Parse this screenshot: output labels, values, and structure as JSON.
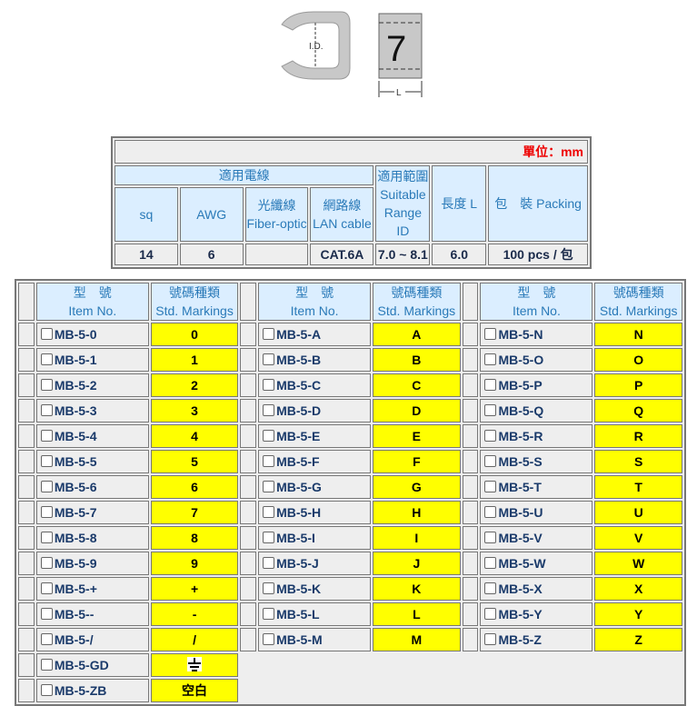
{
  "figure": {
    "id_label": "I.D.",
    "digit": "7",
    "length_label": "L"
  },
  "spec": {
    "unit": "單位：mm",
    "headers": {
      "wire": "適用電線",
      "sq": "sq",
      "awg": "AWG",
      "fiber": "光纖線 Fiber-optic",
      "lan": "網路線 LAN cable",
      "range": "適用範圍 Suitable Range ID",
      "length": "長度 L",
      "packing": "包　裝 Packing"
    },
    "values": {
      "sq": "14",
      "awg": "6",
      "fiber": "",
      "lan": "CAT.6A",
      "range": "7.0 ~ 8.1",
      "length": "6.0",
      "packing": "100 pcs / 包"
    }
  },
  "items": {
    "header": {
      "item_zh": "型　號",
      "item_en": "Item No.",
      "mark_zh": "號碼種類",
      "mark_en": "Std. Markings"
    },
    "groups": [
      [
        [
          "MB-5-0",
          "0"
        ],
        [
          "MB-5-1",
          "1"
        ],
        [
          "MB-5-2",
          "2"
        ],
        [
          "MB-5-3",
          "3"
        ],
        [
          "MB-5-4",
          "4"
        ],
        [
          "MB-5-5",
          "5"
        ],
        [
          "MB-5-6",
          "6"
        ],
        [
          "MB-5-7",
          "7"
        ],
        [
          "MB-5-8",
          "8"
        ],
        [
          "MB-5-9",
          "9"
        ],
        [
          "MB-5-+",
          "+"
        ],
        [
          "MB-5--",
          "-"
        ],
        [
          "MB-5-/",
          "/"
        ],
        [
          "MB-5-GD",
          "⏚"
        ],
        [
          "MB-5-ZB",
          "空白"
        ]
      ],
      [
        [
          "MB-5-A",
          "A"
        ],
        [
          "MB-5-B",
          "B"
        ],
        [
          "MB-5-C",
          "C"
        ],
        [
          "MB-5-D",
          "D"
        ],
        [
          "MB-5-E",
          "E"
        ],
        [
          "MB-5-F",
          "F"
        ],
        [
          "MB-5-G",
          "G"
        ],
        [
          "MB-5-H",
          "H"
        ],
        [
          "MB-5-I",
          "I"
        ],
        [
          "MB-5-J",
          "J"
        ],
        [
          "MB-5-K",
          "K"
        ],
        [
          "MB-5-L",
          "L"
        ],
        [
          "MB-5-M",
          "M"
        ]
      ],
      [
        [
          "MB-5-N",
          "N"
        ],
        [
          "MB-5-O",
          "O"
        ],
        [
          "MB-5-P",
          "P"
        ],
        [
          "MB-5-Q",
          "Q"
        ],
        [
          "MB-5-R",
          "R"
        ],
        [
          "MB-5-S",
          "S"
        ],
        [
          "MB-5-T",
          "T"
        ],
        [
          "MB-5-U",
          "U"
        ],
        [
          "MB-5-V",
          "V"
        ],
        [
          "MB-5-W",
          "W"
        ],
        [
          "MB-5-X",
          "X"
        ],
        [
          "MB-5-Y",
          "Y"
        ],
        [
          "MB-5-Z",
          "Z"
        ]
      ]
    ]
  }
}
